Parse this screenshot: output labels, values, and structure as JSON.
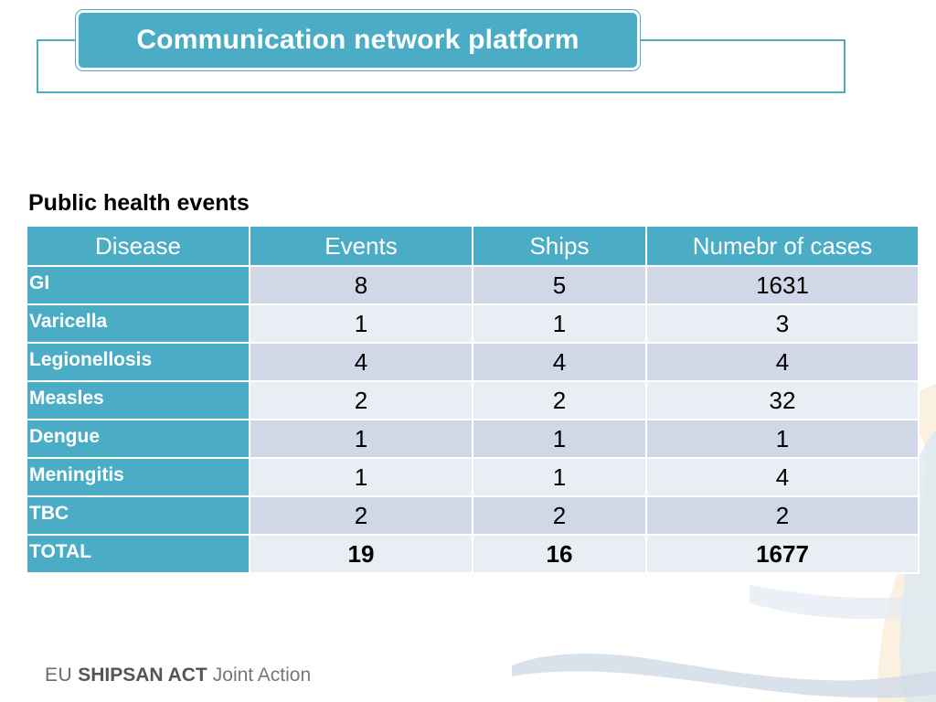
{
  "slide": {
    "title": "Communication network platform",
    "section_heading": "Public health events"
  },
  "table": {
    "headers": [
      "Disease",
      "Events",
      "Ships",
      "Numebr of cases"
    ],
    "rows": [
      {
        "disease": "GI",
        "events": "8",
        "ships": "5",
        "cases": "1631"
      },
      {
        "disease": "Varicella",
        "events": "1",
        "ships": "1",
        "cases": "3"
      },
      {
        "disease": "Legionellosis",
        "events": "4",
        "ships": "4",
        "cases": "4"
      },
      {
        "disease": "Measles",
        "events": "2",
        "ships": "2",
        "cases": "32"
      },
      {
        "disease": "Dengue",
        "events": "1",
        "ships": "1",
        "cases": "1"
      },
      {
        "disease": "Meningitis",
        "events": "1",
        "ships": "1",
        "cases": "4"
      },
      {
        "disease": "TBC",
        "events": "2",
        "ships": "2",
        "cases": "2"
      },
      {
        "disease": "TOTAL",
        "events": "19",
        "ships": "16",
        "cases": "1677"
      }
    ]
  },
  "footer": {
    "eu": "EU",
    "brand": "SHIPSAN ACT",
    "suffix": "Joint Action"
  },
  "colors": {
    "accent": "#4bacc6",
    "row_dark": "#d0d8e8",
    "row_light": "#e9edf4"
  }
}
